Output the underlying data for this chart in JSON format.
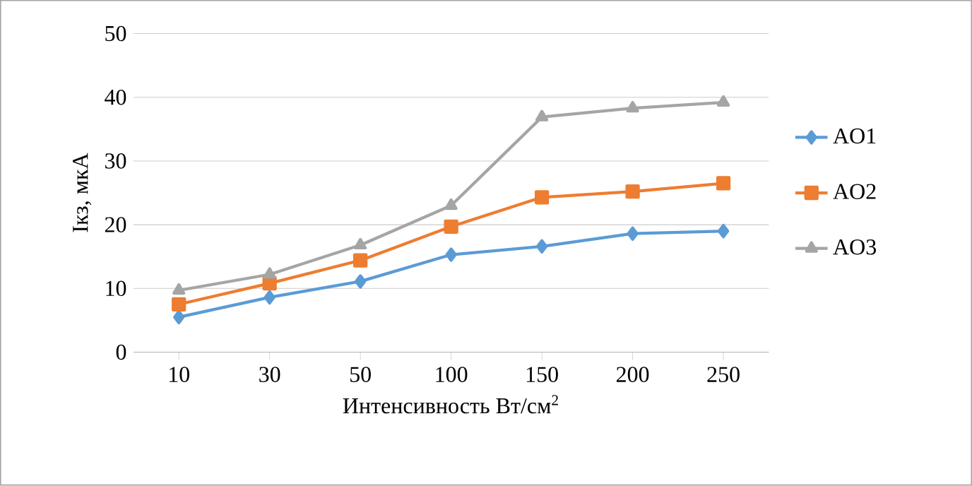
{
  "chart_data": {
    "type": "line",
    "xlabel": "Интенсивность Вт/см$^{2}$",
    "ylabel": "Iкз, мкА",
    "categories": [
      "10",
      "30",
      "50",
      "100",
      "150",
      "200",
      "250"
    ],
    "series": [
      {
        "name": "AO1",
        "color": "#5b9bd5",
        "marker": "diamond",
        "values": [
          5.5,
          8.6,
          11.1,
          15.3,
          16.6,
          18.6,
          19.0
        ]
      },
      {
        "name": "AO2",
        "color": "#ed7d31",
        "marker": "square",
        "values": [
          7.5,
          10.8,
          14.4,
          19.7,
          24.3,
          25.2,
          26.5
        ]
      },
      {
        "name": "AO3",
        "color": "#a5a5a5",
        "marker": "triangle",
        "values": [
          9.7,
          12.2,
          16.8,
          23.0,
          36.9,
          38.3,
          39.2
        ]
      }
    ],
    "ylim": [
      0,
      50
    ],
    "yticks": [
      0,
      10,
      20,
      30,
      40,
      50
    ],
    "grid": "y",
    "legend": "right",
    "line_style": "solid"
  }
}
